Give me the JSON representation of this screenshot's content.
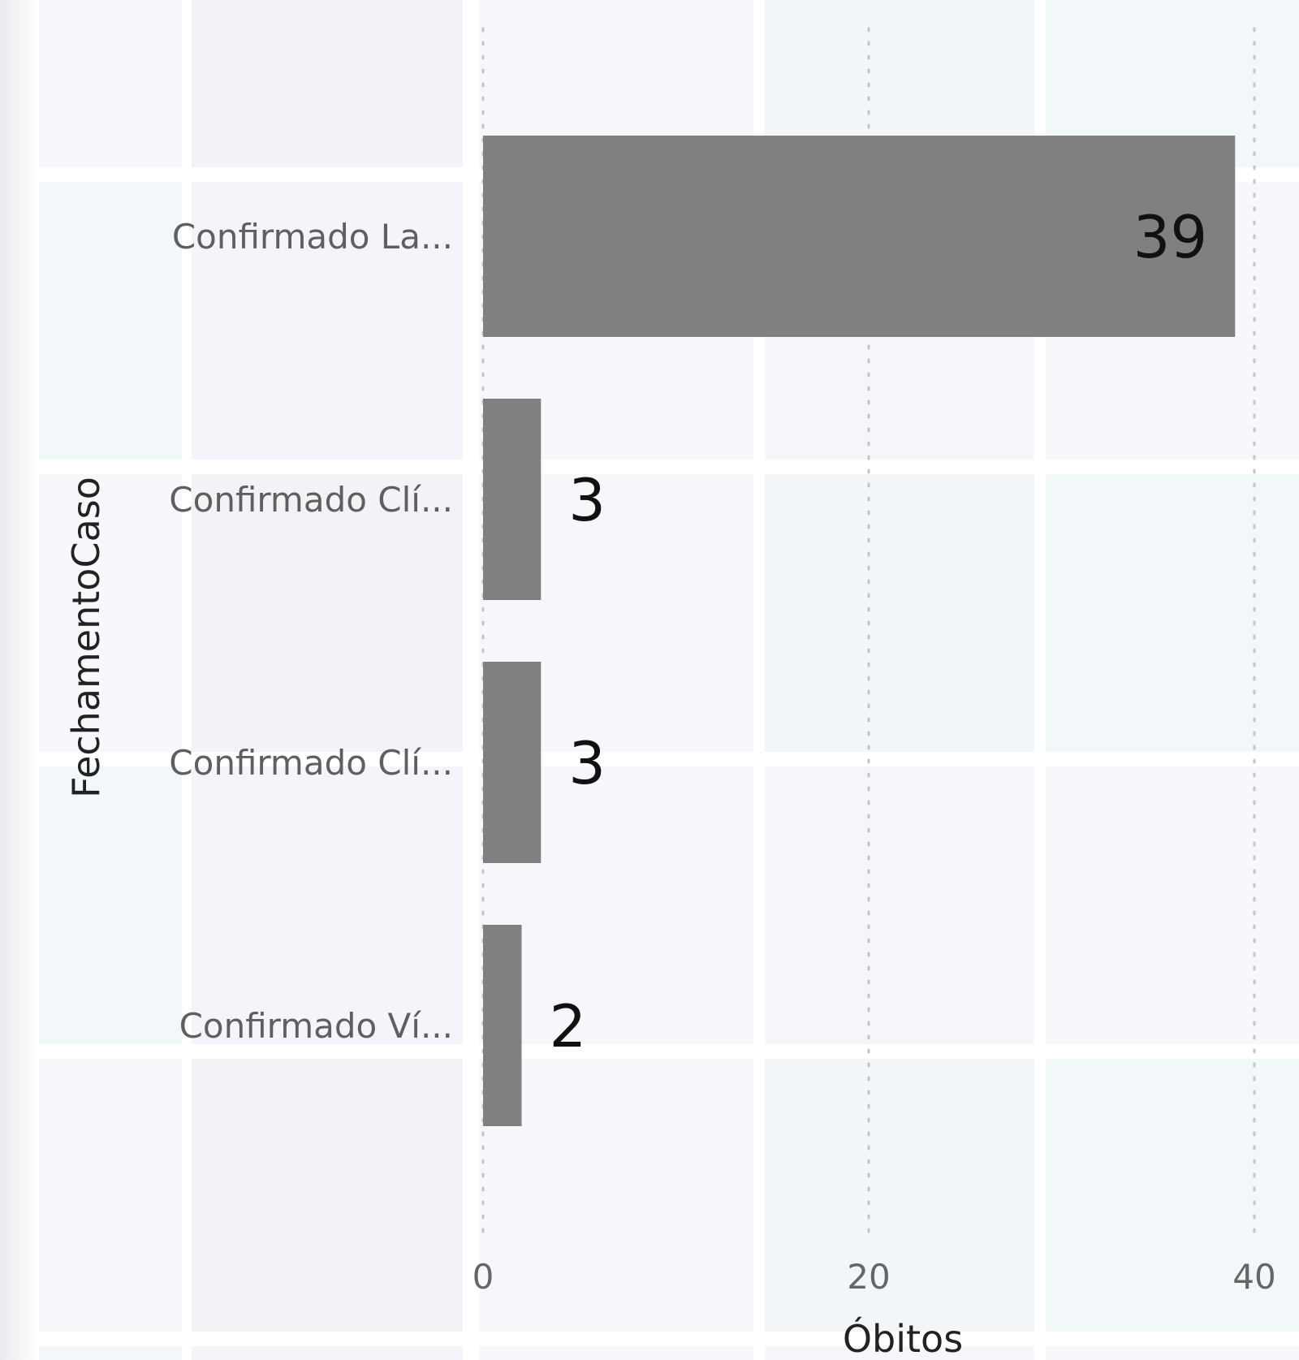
{
  "chart_data": {
    "type": "bar",
    "orientation": "horizontal",
    "categories": [
      "Confirmado La...",
      "Confirmado Clí...",
      "Confirmado Clí...",
      "Confirmado Ví..."
    ],
    "values": [
      39,
      3,
      3,
      2
    ],
    "data_labels": [
      "39",
      "3",
      "3",
      "2"
    ],
    "xlabel": "Óbitos",
    "ylabel": "FechamentoCaso",
    "xlim": [
      0,
      40
    ],
    "x_ticks": [
      "0",
      "20",
      "40"
    ],
    "grid": "vertical dotted",
    "legend": "none",
    "bar_color": "#808080"
  }
}
